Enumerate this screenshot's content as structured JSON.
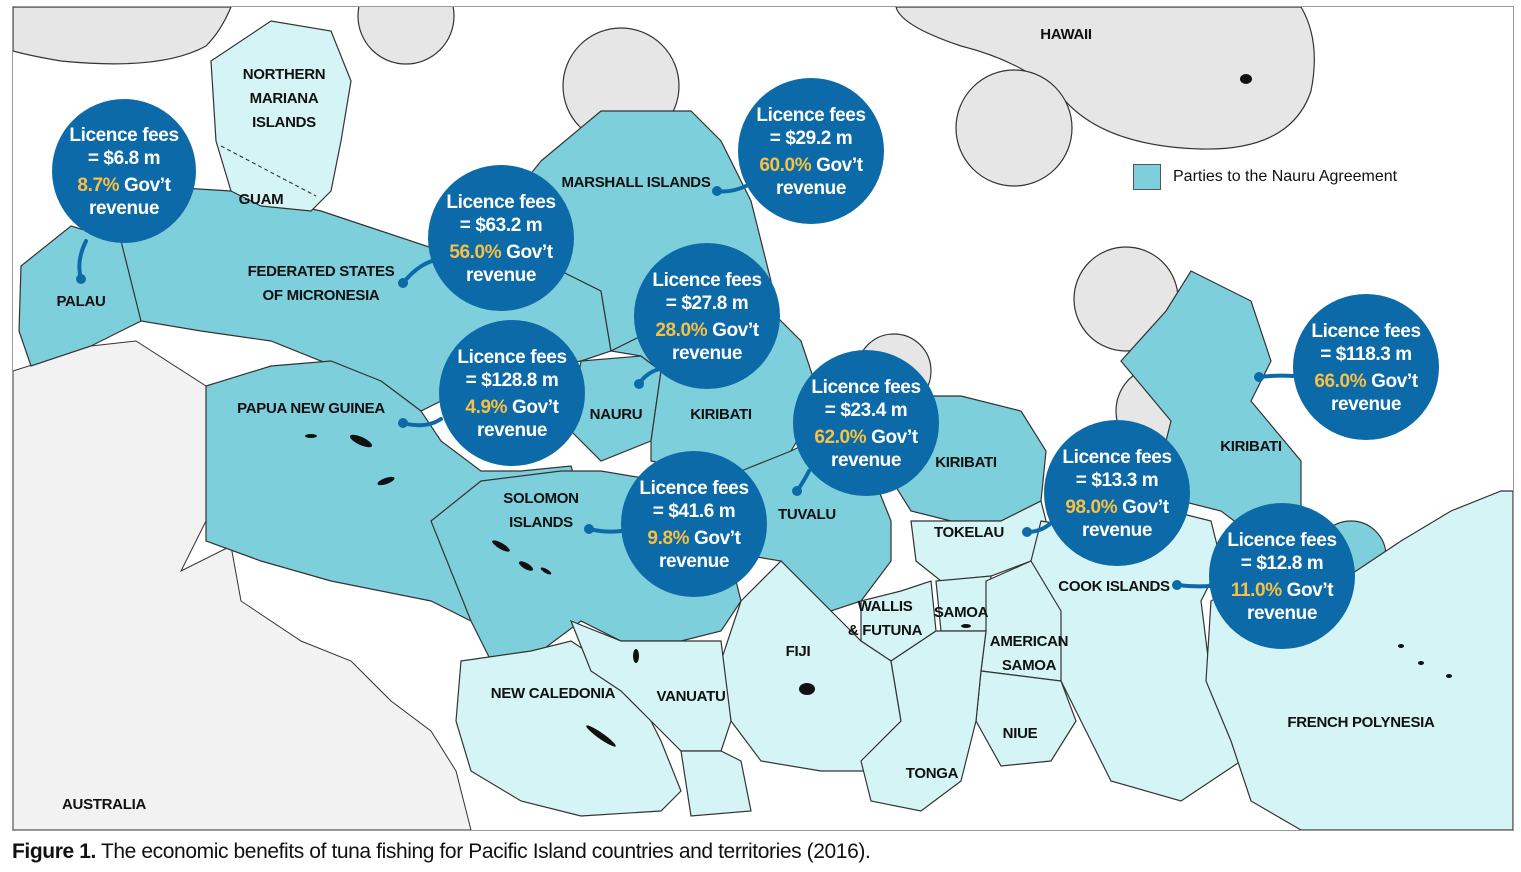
{
  "legend": {
    "label": "Parties to the Nauru Agreement",
    "swatch_color": "#7ecfdc"
  },
  "caption": {
    "prefix": "Figure 1.",
    "text": " The economic benefits of tuna fishing for Pacific Island countries and territories (2016)."
  },
  "colors": {
    "pna_zone": "#7ecfdc",
    "other_zone": "#d5f4f6",
    "outside_zone": "#e6e6e6",
    "bubble": "#0d6aa8",
    "percent_text": "#f6c144"
  },
  "regions": [
    {
      "id": "hawaii",
      "lines": [
        "HAWAII"
      ],
      "group": "outside"
    },
    {
      "id": "northern-mariana",
      "lines": [
        "NORTHERN",
        "MARIANA",
        "ISLANDS"
      ],
      "group": "other"
    },
    {
      "id": "guam",
      "lines": [
        "GUAM"
      ],
      "group": "other"
    },
    {
      "id": "palau",
      "lines": [
        "PALAU"
      ],
      "group": "pna"
    },
    {
      "id": "fsm",
      "lines": [
        "FEDERATED STATES",
        "OF MICRONESIA"
      ],
      "group": "pna"
    },
    {
      "id": "marshall",
      "lines": [
        "MARSHALL ISLANDS"
      ],
      "group": "pna"
    },
    {
      "id": "png",
      "lines": [
        "PAPUA NEW GUINEA"
      ],
      "group": "pna"
    },
    {
      "id": "nauru",
      "lines": [
        "NAURU"
      ],
      "group": "pna"
    },
    {
      "id": "kiribati-west",
      "lines": [
        "KIRIBATI"
      ],
      "group": "pna"
    },
    {
      "id": "kiribati-central",
      "lines": [
        "KIRIBATI"
      ],
      "group": "pna"
    },
    {
      "id": "kiribati-east",
      "lines": [
        "KIRIBATI"
      ],
      "group": "pna"
    },
    {
      "id": "solomon",
      "lines": [
        "SOLOMON",
        "ISLANDS"
      ],
      "group": "pna"
    },
    {
      "id": "tuvalu",
      "lines": [
        "TUVALU"
      ],
      "group": "pna"
    },
    {
      "id": "tokelau",
      "lines": [
        "TOKELAU"
      ],
      "group": "other"
    },
    {
      "id": "cook",
      "lines": [
        "COOK ISLANDS"
      ],
      "group": "other"
    },
    {
      "id": "wallis",
      "lines": [
        "WALLIS",
        "& FUTUNA"
      ],
      "group": "other"
    },
    {
      "id": "samoa",
      "lines": [
        "SAMOA"
      ],
      "group": "other"
    },
    {
      "id": "american-samoa",
      "lines": [
        "AMERICAN",
        "SAMOA"
      ],
      "group": "other"
    },
    {
      "id": "fiji",
      "lines": [
        "FIJI"
      ],
      "group": "other"
    },
    {
      "id": "new-caledonia",
      "lines": [
        "NEW CALEDONIA"
      ],
      "group": "other"
    },
    {
      "id": "vanuatu",
      "lines": [
        "VANUATU"
      ],
      "group": "other"
    },
    {
      "id": "niue",
      "lines": [
        "NIUE"
      ],
      "group": "other"
    },
    {
      "id": "tonga",
      "lines": [
        "TONGA"
      ],
      "group": "other"
    },
    {
      "id": "french-polynesia",
      "lines": [
        "FRENCH POLYNESIA"
      ],
      "group": "other"
    },
    {
      "id": "australia",
      "lines": [
        "AUSTRALIA"
      ],
      "group": "land"
    }
  ],
  "bubbles": [
    {
      "id": "palau",
      "line1": "Licence fees",
      "line2": "= $6.8 m",
      "pct": "8.7%",
      "suffix": " Gov’t",
      "line4": "revenue",
      "licence_fees_musd": 6.8,
      "gov_revenue_pct": 8.7
    },
    {
      "id": "fsm",
      "line1": "Licence fees",
      "line2": "= $63.2 m",
      "pct": "56.0%",
      "suffix": " Gov’t",
      "line4": "revenue",
      "licence_fees_musd": 63.2,
      "gov_revenue_pct": 56.0
    },
    {
      "id": "marshall",
      "line1": "Licence fees",
      "line2": "= $29.2 m",
      "pct": "60.0%",
      "suffix": " Gov’t",
      "line4": "revenue",
      "licence_fees_musd": 29.2,
      "gov_revenue_pct": 60.0
    },
    {
      "id": "nauru",
      "line1": "Licence fees",
      "line2": "= $27.8 m",
      "pct": "28.0%",
      "suffix": " Gov’t",
      "line4": "revenue",
      "licence_fees_musd": 27.8,
      "gov_revenue_pct": 28.0
    },
    {
      "id": "png",
      "line1": "Licence fees",
      "line2": "= $128.8 m",
      "pct": "4.9%",
      "suffix": " Gov’t",
      "line4": "revenue",
      "licence_fees_musd": 128.8,
      "gov_revenue_pct": 4.9
    },
    {
      "id": "tuvalu",
      "line1": "Licence fees",
      "line2": "= $23.4 m",
      "pct": "62.0%",
      "suffix": " Gov’t",
      "line4": "revenue",
      "licence_fees_musd": 23.4,
      "gov_revenue_pct": 62.0
    },
    {
      "id": "solomon",
      "line1": "Licence fees",
      "line2": "= $41.6 m",
      "pct": "9.8%",
      "suffix": " Gov’t",
      "line4": "revenue",
      "licence_fees_musd": 41.6,
      "gov_revenue_pct": 9.8
    },
    {
      "id": "kiribati",
      "line1": "Licence fees",
      "line2": "= $118.3 m",
      "pct": "66.0%",
      "suffix": " Gov’t",
      "line4": "revenue",
      "licence_fees_musd": 118.3,
      "gov_revenue_pct": 66.0
    },
    {
      "id": "tokelau",
      "line1": "Licence fees",
      "line2": "= $13.3 m",
      "pct": "98.0%",
      "suffix": " Gov’t",
      "line4": "revenue",
      "licence_fees_musd": 13.3,
      "gov_revenue_pct": 98.0
    },
    {
      "id": "cook",
      "line1": "Licence fees",
      "line2": "= $12.8 m",
      "pct": "11.0%",
      "suffix": " Gov’t",
      "line4": "revenue",
      "licence_fees_musd": 12.8,
      "gov_revenue_pct": 11.0
    }
  ]
}
